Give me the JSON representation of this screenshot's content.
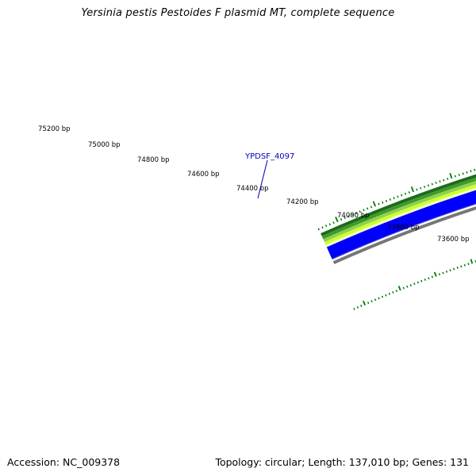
{
  "title": "Yersinia pestis Pestoides F plasmid MT, complete sequence",
  "footer": {
    "accession_label": "Accession:",
    "accession": "NC_009378",
    "topology_label": "Topology:",
    "topology": "circular",
    "length_label": "Length:",
    "length": "137,010 bp",
    "genes_label": "Genes:",
    "genes": "131"
  },
  "map": {
    "tick_labels": [
      {
        "bp": 75200,
        "text": "75200 bp"
      },
      {
        "bp": 75000,
        "text": "75000 bp"
      },
      {
        "bp": 74800,
        "text": "74800 bp"
      },
      {
        "bp": 74600,
        "text": "74600 bp"
      },
      {
        "bp": 74400,
        "text": "74400 bp"
      },
      {
        "bp": 74200,
        "text": "74200 bp"
      },
      {
        "bp": 74000,
        "text": "74000 bp"
      },
      {
        "bp": 73800,
        "text": "73800 bp"
      },
      {
        "bp": 73600,
        "text": "73600 bp"
      }
    ],
    "gene_label": {
      "text": "YPDSF_4097"
    },
    "colors": {
      "ruler_ticks": "#007a00",
      "ring_outer_dark_green": "#1c6b1c",
      "ring_green": "#3f9a2a",
      "ring_light_green": "#8fd14f",
      "ring_yellow_green": "#ccff33",
      "ring_pale_yellow": "#f4ffb8",
      "ring_blue": "#0000ff",
      "ring_blue_edge": "#3333cc",
      "ring_gray": "#777777",
      "gene_label": "#0000bb"
    }
  }
}
